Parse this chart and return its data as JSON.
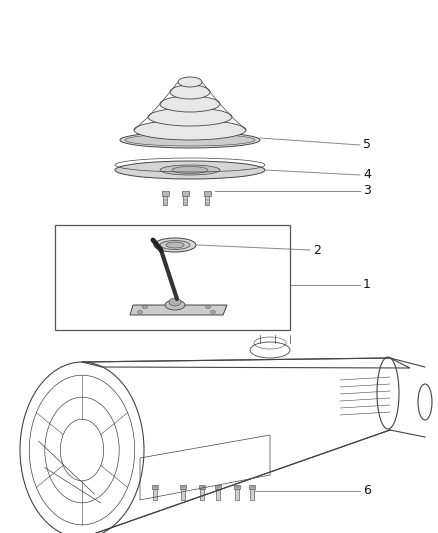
{
  "bg_color": "#ffffff",
  "line_color": "#444444",
  "label_color": "#111111",
  "label_fontsize": 9,
  "fig_width": 4.38,
  "fig_height": 5.33,
  "dpi": 100
}
